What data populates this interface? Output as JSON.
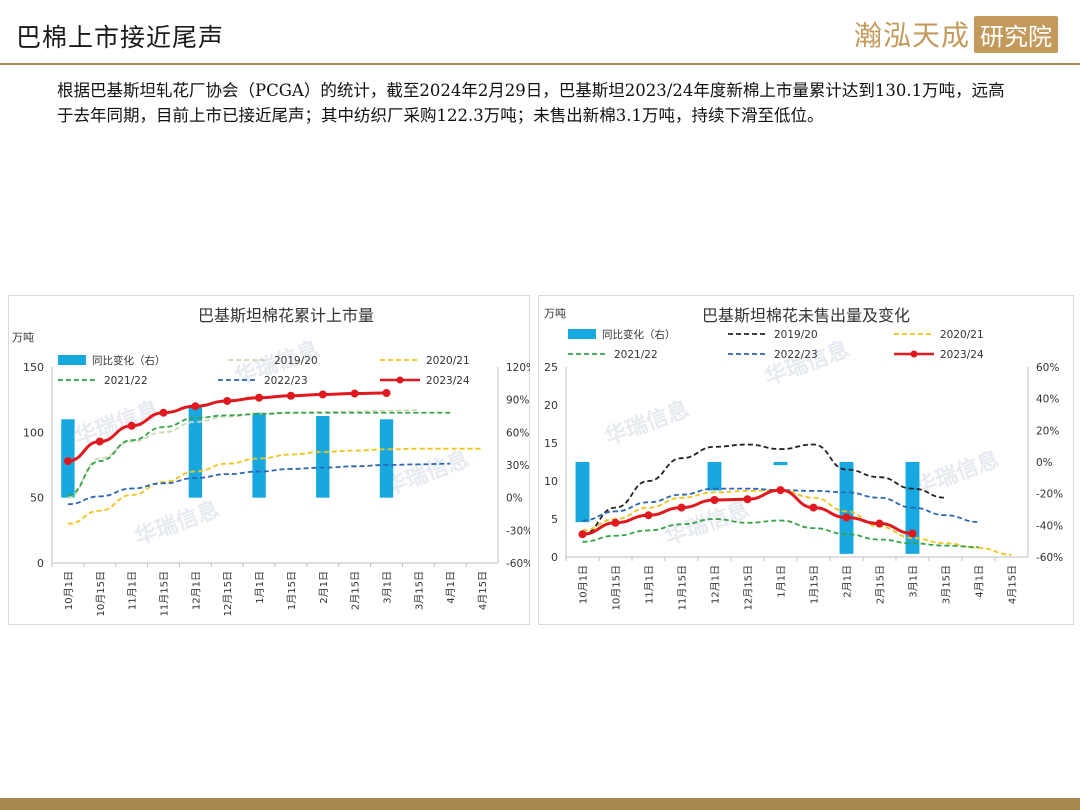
{
  "header": {
    "title": "巴棉上市接近尾声",
    "logo_main": "瀚泓天成",
    "logo_sub": "研究院"
  },
  "intro": {
    "paragraph": "根据巴基斯坦轧花厂协会（PCGA）的统计，截至2024年2月29日，巴基斯坦2023/24年度新棉上市量累计达到130.1万吨，远高于去年同期，目前上市已接近尾声；其中纺织厂采购122.3万吨；未售出新棉3.1万吨，持续下滑至低位。"
  },
  "watermark": "华瑞信息",
  "colors": {
    "bar": "#18a8e0",
    "s2019": "#c7d9b4",
    "s2020": "#f2c21b",
    "s2021": "#35a34a",
    "s2022": "#2b67b1",
    "s2023": "#e0191e",
    "s2019_right": "#222222",
    "accent": "#a7864f"
  },
  "chart_data": [
    {
      "type": "line",
      "title": "巴基斯坦棉花累计上市量",
      "ylabel": "万吨",
      "ylim": [
        0,
        150
      ],
      "yticks": [
        "0",
        "50",
        "100",
        "150"
      ],
      "y2lim": [
        -60,
        120
      ],
      "y2ticks": [
        "-60%",
        "-30%",
        "0%",
        "30%",
        "60%",
        "90%",
        "120%"
      ],
      "categories": [
        "10月1日",
        "10月15日",
        "11月1日",
        "11月15日",
        "12月1日",
        "12月15日",
        "1月1日",
        "1月15日",
        "2月1日",
        "2月15日",
        "3月1日",
        "3月15日",
        "4月1日",
        "4月15日"
      ],
      "legend": [
        "同比变化（右）",
        "2019/20",
        "2020/21",
        "2021/22",
        "2022/23",
        "2023/24"
      ],
      "bars": {
        "name": "同比变化（右）",
        "values": [
          72,
          null,
          null,
          null,
          85,
          null,
          78,
          null,
          75,
          null,
          72,
          null,
          null,
          null
        ]
      },
      "series": [
        {
          "name": "2019/20",
          "style": "dashed",
          "values": [
            50,
            80,
            93,
            100,
            108,
            112,
            114,
            115,
            115.5,
            116,
            116.5,
            117,
            null,
            null
          ]
        },
        {
          "name": "2020/21",
          "style": "dashed",
          "values": [
            30,
            40,
            52,
            62,
            70,
            76,
            80,
            83,
            85,
            86,
            87,
            87.5,
            87.5,
            87.5
          ]
        },
        {
          "name": "2021/22",
          "style": "dashed",
          "values": [
            52,
            78,
            94,
            104,
            111,
            113,
            114,
            115,
            115,
            115,
            115,
            115,
            115,
            null
          ]
        },
        {
          "name": "2022/23",
          "style": "dashed",
          "values": [
            45,
            51,
            57,
            61,
            65,
            68,
            70,
            72,
            73,
            74,
            75,
            75.5,
            76,
            null
          ]
        },
        {
          "name": "2023/24",
          "style": "solid-marker",
          "values": [
            78,
            93,
            105,
            115,
            120,
            124,
            126.5,
            128,
            129,
            129.7,
            130.1,
            null,
            null,
            null
          ]
        }
      ]
    },
    {
      "type": "line",
      "title": "巴基斯坦棉花未售出量及变化",
      "ylabel": "万吨",
      "ylim": [
        0,
        25
      ],
      "yticks": [
        "0",
        "5",
        "10",
        "15",
        "20",
        "25"
      ],
      "y2lim": [
        -60,
        60
      ],
      "y2ticks": [
        "-60%",
        "-40%",
        "-20%",
        "0%",
        "20%",
        "40%",
        "60%"
      ],
      "categories": [
        "10月1日",
        "10月15日",
        "11月1日",
        "11月15日",
        "12月1日",
        "12月15日",
        "1月1日",
        "1月15日",
        "2月1日",
        "2月15日",
        "3月1日",
        "3月15日",
        "4月1日",
        "4月15日"
      ],
      "legend": [
        "同比变化（右）",
        "2019/20",
        "2020/21",
        "2021/22",
        "2022/23",
        "2023/24"
      ],
      "bars": {
        "name": "同比变化（右）",
        "values": [
          -38,
          null,
          null,
          null,
          -18,
          null,
          -2,
          null,
          -58,
          null,
          -58,
          null,
          null,
          null
        ]
      },
      "series": [
        {
          "name": "2019/20",
          "style": "dashed",
          "values": [
            3,
            6.5,
            10,
            13,
            14.5,
            14.8,
            14.2,
            14.8,
            11.5,
            10.5,
            9,
            7.8,
            null,
            null
          ]
        },
        {
          "name": "2020/21",
          "style": "dashed",
          "values": [
            3.5,
            5,
            6.5,
            7.8,
            8.5,
            8.7,
            8.8,
            7.8,
            6,
            4,
            2.5,
            1.8,
            1.2,
            0.3
          ]
        },
        {
          "name": "2021/22",
          "style": "dashed",
          "values": [
            2,
            2.8,
            3.5,
            4.3,
            5,
            4.5,
            4.8,
            3.8,
            3,
            2.3,
            1.8,
            1.5,
            1.3,
            null
          ]
        },
        {
          "name": "2022/23",
          "style": "dashed",
          "values": [
            4.8,
            6,
            7.2,
            8.2,
            9,
            9,
            8.8,
            8.7,
            8.5,
            7.8,
            6.5,
            5.5,
            4.6,
            null
          ]
        },
        {
          "name": "2023/24",
          "style": "solid-marker",
          "values": [
            3,
            4.5,
            5.5,
            6.5,
            7.5,
            7.6,
            8.8,
            6.5,
            5.2,
            4.4,
            3.1,
            null,
            null,
            null
          ]
        }
      ]
    }
  ]
}
